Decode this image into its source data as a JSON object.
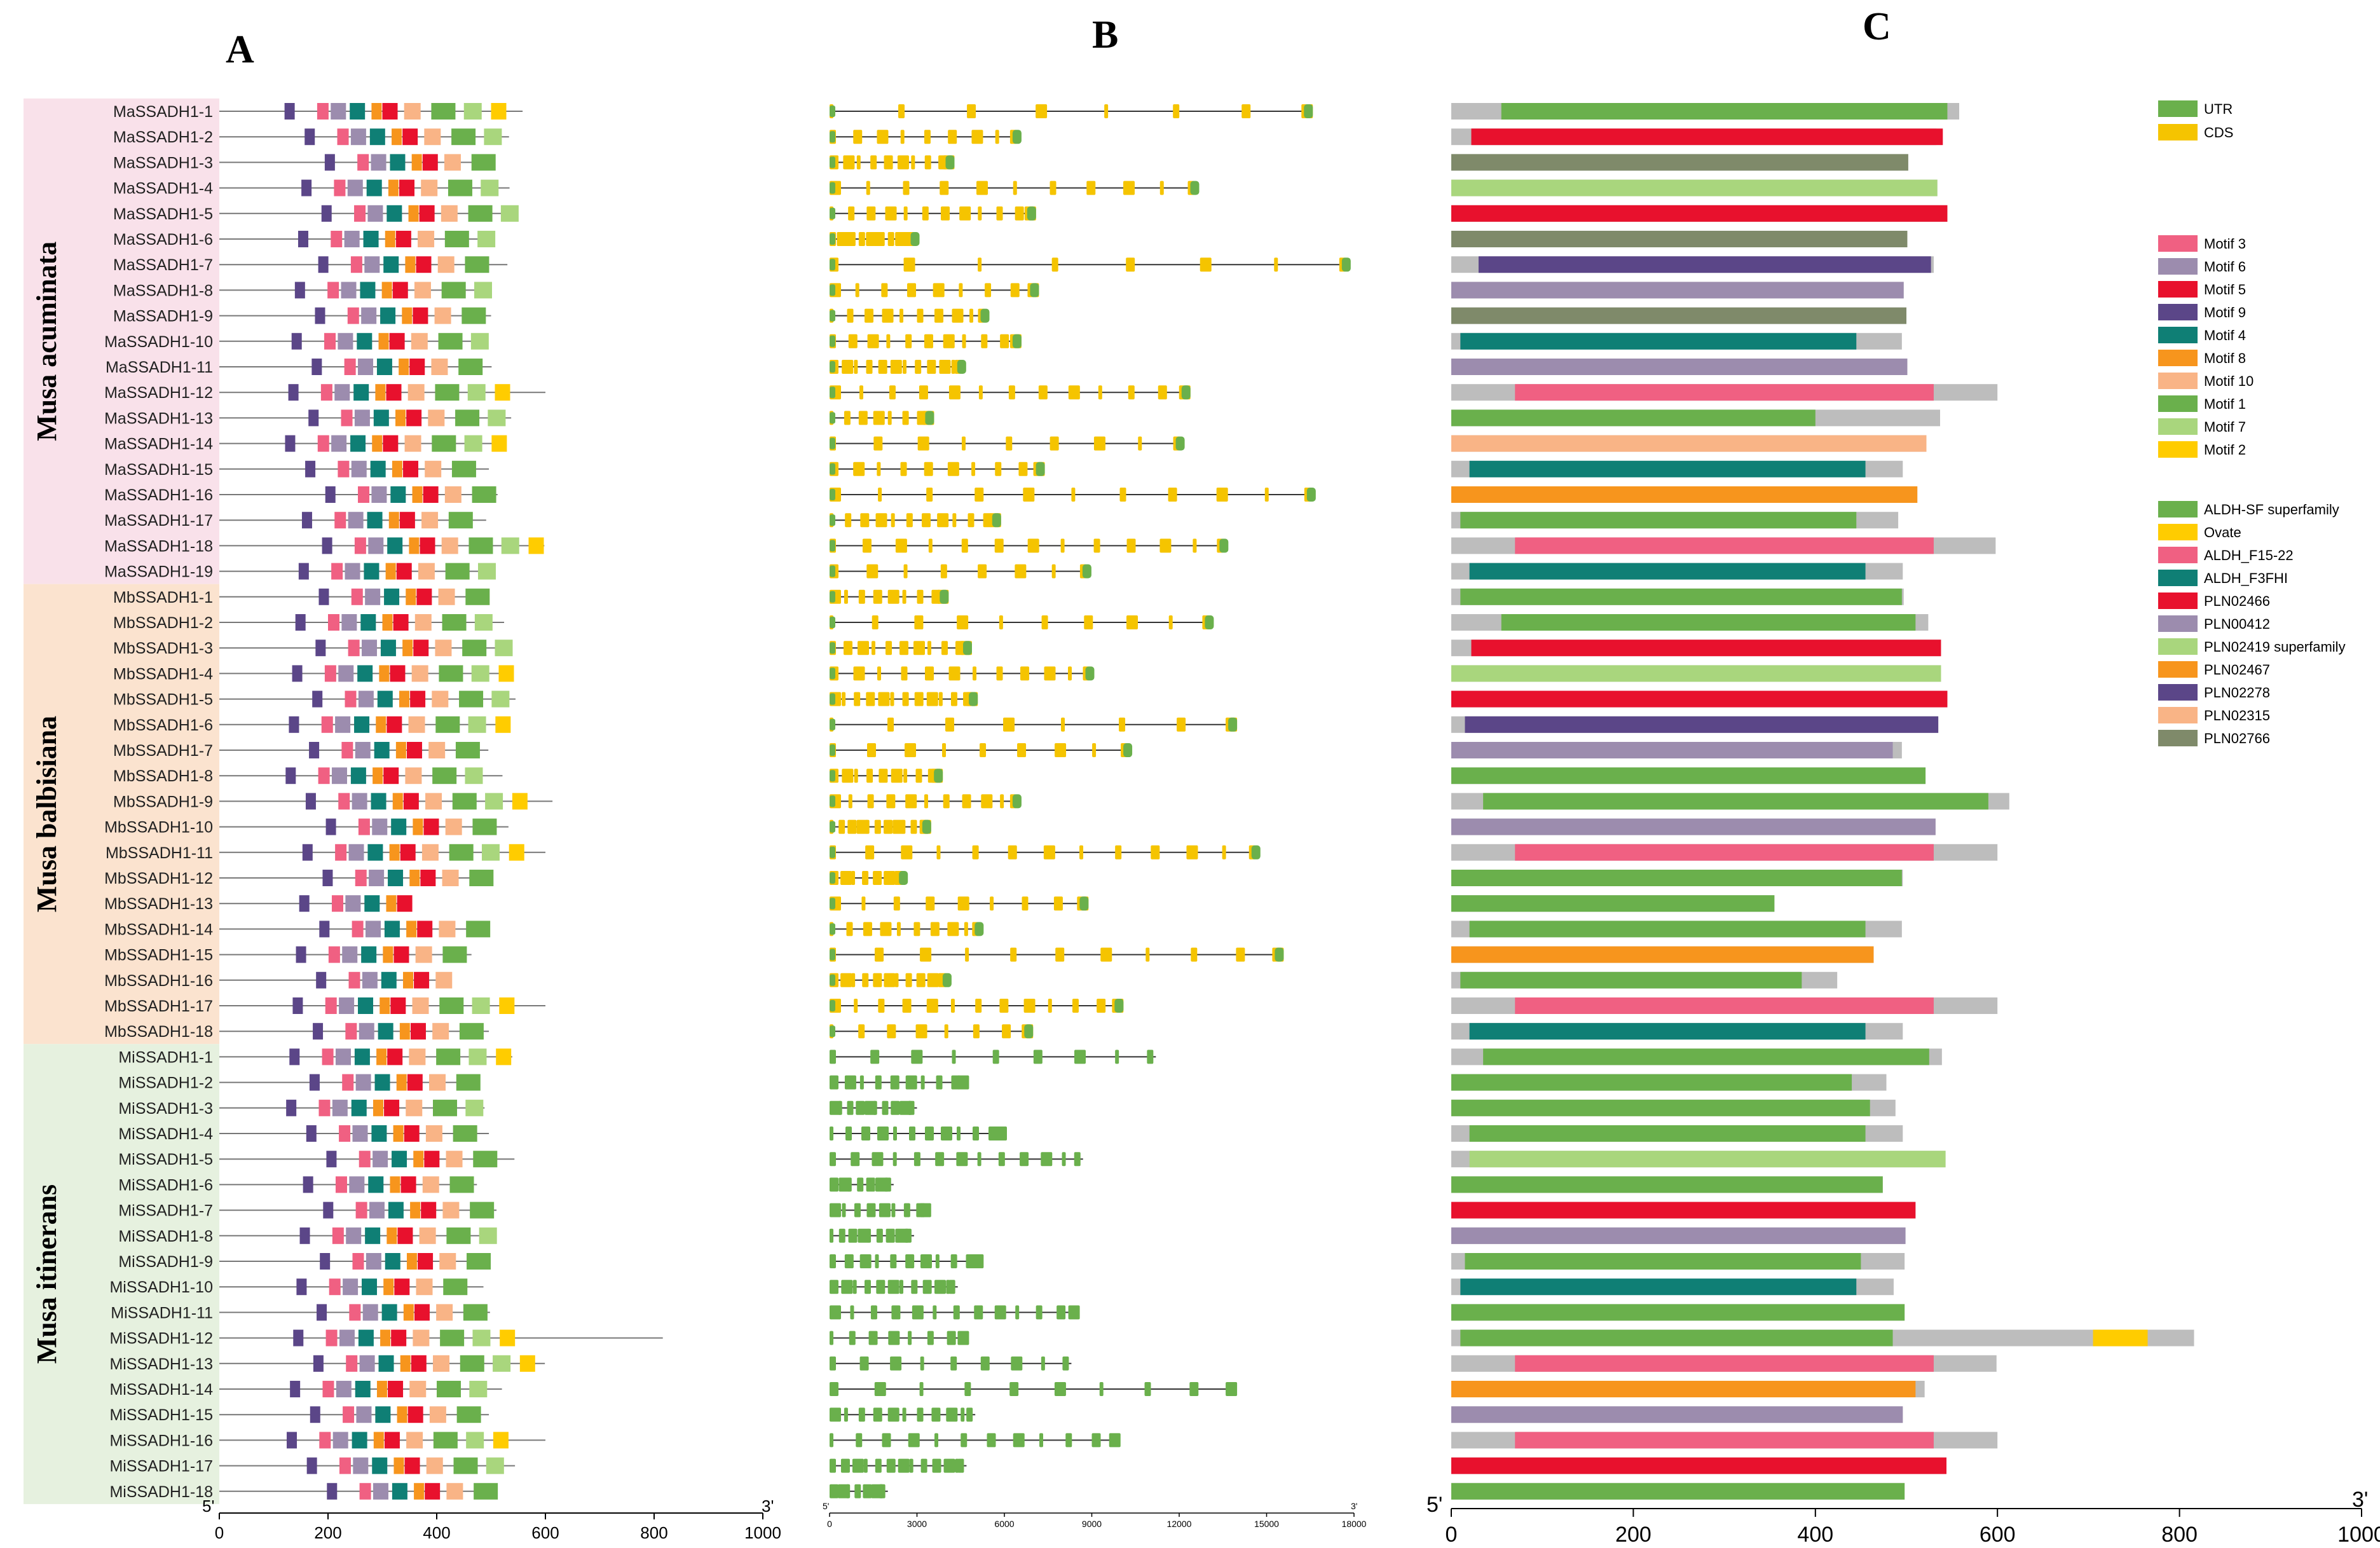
{
  "panels": {
    "a": "A",
    "b": "B",
    "c": "C"
  },
  "groups": [
    {
      "name": "Musa acuminata",
      "color": "#f9e1ea"
    },
    {
      "name": "Musa balbisiana",
      "color": "#fbe3cf"
    },
    {
      "name": "Musa itinerans",
      "color": "#e6f1df"
    }
  ],
  "genes": [
    "MaSSADH1-1",
    "MaSSADH1-2",
    "MaSSADH1-3",
    "MaSSADH1-4",
    "MaSSADH1-5",
    "MaSSADH1-6",
    "MaSSADH1-7",
    "MaSSADH1-8",
    "MaSSADH1-9",
    "MaSSADH1-10",
    "MaSSADH1-11",
    "MaSSADH1-12",
    "MaSSADH1-13",
    "MaSSADH1-14",
    "MaSSADH1-15",
    "MaSSADH1-16",
    "MaSSADH1-17",
    "MaSSADH1-18",
    "MaSSADH1-19",
    "MbSSADH1-1",
    "MbSSADH1-2",
    "MbSSADH1-3",
    "MbSSADH1-4",
    "MbSSADH1-5",
    "MbSSADH1-6",
    "MbSSADH1-7",
    "MbSSADH1-8",
    "MbSSADH1-9",
    "MbSSADH1-10",
    "MbSSADH1-11",
    "MbSSADH1-12",
    "MbSSADH1-13",
    "MbSSADH1-14",
    "MbSSADH1-15",
    "MbSSADH1-16",
    "MbSSADH1-17",
    "MbSSADH1-18",
    "MiSSADH1-1",
    "MiSSADH1-2",
    "MiSSADH1-3",
    "MiSSADH1-4",
    "MiSSADH1-5",
    "MiSSADH1-6",
    "MiSSADH1-7",
    "MiSSADH1-8",
    "MiSSADH1-9",
    "MiSSADH1-10",
    "MiSSADH1-11",
    "MiSSADH1-12",
    "MiSSADH1-13",
    "MiSSADH1-14",
    "MiSSADH1-15",
    "MiSSADH1-16",
    "MiSSADH1-17",
    "MiSSADH1-18"
  ],
  "protein_lengths": [
    558,
    533,
    502,
    534,
    545,
    501,
    530,
    497,
    500,
    495,
    501,
    600,
    537,
    522,
    496,
    512,
    491,
    598,
    496,
    497,
    524,
    538,
    538,
    545,
    535,
    495,
    521,
    613,
    532,
    600,
    496,
    355,
    495,
    464,
    424,
    600,
    496,
    539,
    478,
    488,
    496,
    543,
    474,
    510,
    499,
    498,
    486,
    498,
    816,
    599,
    520,
    496,
    600,
    544,
    498
  ],
  "motif_colors": {
    "m3": "#f06082",
    "m6": "#9c8cae",
    "m5": "#e8112d",
    "m9": "#5b4688",
    "m4": "#0f7f75",
    "m8": "#f7951d",
    "m10": "#f9b486",
    "m1": "#6ab04c",
    "m7": "#a9d67d",
    "m2": "#ffcc00"
  },
  "motif_order_typical": [
    "m9",
    "m3",
    "m6",
    "m4",
    "m8",
    "m5",
    "m10",
    "m1",
    "m7",
    "m2"
  ],
  "motif_offsets_typical": [
    0,
    60,
    85,
    120,
    160,
    180,
    220,
    270,
    330,
    380
  ],
  "gene_structure": {
    "utr_color": "#6ab04c",
    "cds_color": "#f5c400",
    "lengths_bp": [
      16500,
      6500,
      4200,
      12600,
      7000,
      3000,
      17800,
      7100,
      5400,
      6500,
      4600,
      12300,
      3500,
      12100,
      7300,
      16600,
      5800,
      13600,
      8900,
      4000,
      13100,
      4800,
      9000,
      5000,
      13900,
      10300,
      3800,
      6500,
      3400,
      14700,
      2600,
      8800,
      5200,
      15500,
      4100,
      10000,
      6900,
      11200,
      4700,
      3000,
      6000,
      8700,
      2200,
      3400,
      2900,
      5200,
      4400,
      8500,
      4700,
      8300,
      13900,
      5000,
      9900,
      4700,
      2000
    ],
    "axis_ticks": [
      "0",
      "3000",
      "6000",
      "9000",
      "12000",
      "15000",
      "18000"
    ],
    "axis_max": 18000
  },
  "domain_colors": {
    "ALDH-SF superfamily": "#6ab04c",
    "Ovate": "#ffcc00",
    "ALDH_F15-22": "#f06082",
    "ALDH_F3FHI": "#0f7f75",
    "PLN02466": "#e8112d",
    "PLN00412": "#9c8cae",
    "PLN02419 superfamily": "#a9d67d",
    "PLN02467": "#f7951d",
    "PLN02278": "#5b4688",
    "PLN02315": "#f9b486",
    "PLN02766": "#7f8a6a"
  },
  "domains": [
    [
      "ALDH-SF superfamily",
      55,
      545
    ],
    [
      "PLN02466",
      22,
      540
    ],
    [
      "PLN02766",
      0,
      502
    ],
    [
      "PLN02419 superfamily",
      0,
      534
    ],
    [
      "PLN02466",
      0,
      545
    ],
    [
      "PLN02766",
      0,
      501
    ],
    [
      "PLN02278",
      30,
      527
    ],
    [
      "PLN00412",
      0,
      497
    ],
    [
      "PLN02766",
      0,
      500
    ],
    [
      "ALDH_F3FHI",
      10,
      445
    ],
    [
      "PLN00412",
      0,
      501
    ],
    [
      "ALDH_F15-22",
      70,
      530
    ],
    [
      "ALDH-SF superfamily",
      0,
      400
    ],
    [
      "PLN02315",
      0,
      522
    ],
    [
      "ALDH_F3FHI",
      20,
      455
    ],
    [
      "PLN02467",
      0,
      512
    ],
    [
      "ALDH-SF superfamily",
      10,
      445
    ],
    [
      "ALDH_F15-22",
      70,
      530
    ],
    [
      "ALDH_F3FHI",
      20,
      455
    ],
    [
      "ALDH-SF superfamily",
      10,
      495
    ],
    [
      "ALDH-SF superfamily",
      55,
      510
    ],
    [
      "PLN02466",
      22,
      538
    ],
    [
      "PLN02419 superfamily",
      0,
      538
    ],
    [
      "PLN02466",
      0,
      545
    ],
    [
      "PLN02278",
      15,
      535
    ],
    [
      "PLN00412",
      0,
      485
    ],
    [
      "ALDH-SF superfamily",
      0,
      521
    ],
    [
      "ALDH-SF superfamily",
      35,
      590
    ],
    [
      "PLN00412",
      0,
      532
    ],
    [
      "ALDH_F15-22",
      70,
      530
    ],
    [
      "ALDH-SF superfamily",
      0,
      495
    ],
    [
      "ALDH-SF superfamily",
      0,
      355
    ],
    [
      "ALDH-SF superfamily",
      20,
      455
    ],
    [
      "PLN02467",
      0,
      464
    ],
    [
      "ALDH-SF superfamily",
      10,
      385
    ],
    [
      "ALDH_F15-22",
      70,
      530
    ],
    [
      "ALDH_F3FHI",
      20,
      455
    ],
    [
      "ALDH-SF superfamily",
      35,
      525
    ],
    [
      "ALDH-SF superfamily",
      0,
      440
    ],
    [
      "ALDH-SF superfamily",
      0,
      460
    ],
    [
      "ALDH-SF superfamily",
      20,
      455
    ],
    [
      "PLN02419 superfamily",
      20,
      543
    ],
    [
      "ALDH-SF superfamily",
      0,
      474
    ],
    [
      "PLN02466",
      0,
      510
    ],
    [
      "PLN00412",
      0,
      499
    ],
    [
      "ALDH-SF superfamily",
      15,
      450
    ],
    [
      "ALDH_F3FHI",
      10,
      445
    ],
    [
      "ALDH-SF superfamily",
      0,
      498
    ],
    [
      "ALDH-SF superfamily",
      10,
      485
    ],
    [
      "ALDH_F15-22",
      70,
      530
    ],
    [
      "PLN02467",
      0,
      510
    ],
    [
      "PLN00412",
      0,
      496
    ],
    [
      "ALDH_F15-22",
      70,
      530
    ],
    [
      "PLN02466",
      0,
      544
    ],
    [
      "ALDH-SF superfamily",
      0,
      498
    ]
  ],
  "extra_domain": {
    "gene_index": 48,
    "name": "Ovate",
    "start": 705,
    "end": 765
  },
  "axis_a": {
    "ticks": [
      "0",
      "200",
      "400",
      "600",
      "800",
      "1000"
    ],
    "max": 1000,
    "five": "5'",
    "three": "3'"
  },
  "axis_b": {
    "five": "5'",
    "three": "3'"
  },
  "axis_c": {
    "ticks": [
      "0",
      "200",
      "400",
      "600",
      "800",
      "1000"
    ],
    "max": 1000,
    "five": "5'",
    "three": "3'"
  },
  "legend_structure": [
    "UTR",
    "CDS"
  ],
  "legend_motifs": [
    {
      "key": "m3",
      "label": "Motif 3"
    },
    {
      "key": "m6",
      "label": "Motif 6"
    },
    {
      "key": "m5",
      "label": "Motif 5"
    },
    {
      "key": "m9",
      "label": "Motif 9"
    },
    {
      "key": "m4",
      "label": "Motif 4"
    },
    {
      "key": "m8",
      "label": "Motif 8"
    },
    {
      "key": "m10",
      "label": "Motif 10"
    },
    {
      "key": "m1",
      "label": "Motif 1"
    },
    {
      "key": "m7",
      "label": "Motif 7"
    },
    {
      "key": "m2",
      "label": "Motif 2"
    }
  ],
  "legend_domains": [
    "ALDH-SF superfamily",
    "Ovate",
    "ALDH_F15-22",
    "ALDH_F3FHI",
    "PLN02466",
    "PLN00412",
    "PLN02419 superfamily",
    "PLN02467",
    "PLN02278",
    "PLN02315",
    "PLN02766"
  ]
}
